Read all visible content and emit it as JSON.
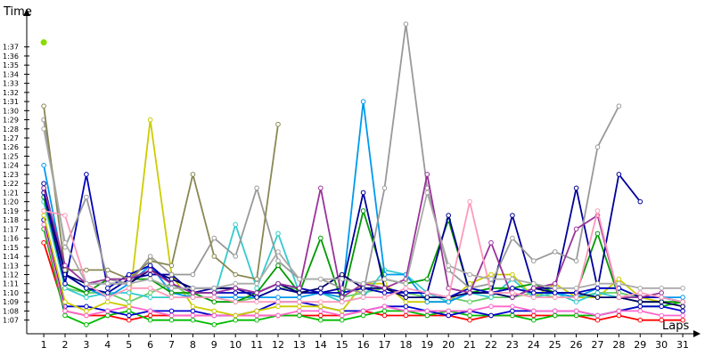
{
  "chart_data": {
    "type": "line",
    "ylabel": "Time",
    "xlabel": "Laps",
    "x": [
      1,
      2,
      3,
      4,
      5,
      6,
      7,
      8,
      9,
      10,
      11,
      12,
      13,
      14,
      15,
      16,
      17,
      18,
      19,
      20,
      21,
      22,
      23,
      24,
      25,
      26,
      27,
      28,
      29,
      30,
      31
    ],
    "x_tick_labels": [
      "1",
      "2",
      "3",
      "4",
      "5",
      "6",
      "7",
      "8",
      "9",
      "10",
      "11",
      "12",
      "13",
      "14",
      "15",
      "16",
      "17",
      "18",
      "19",
      "20",
      "21",
      "22",
      "23",
      "24",
      "25",
      "26",
      "27",
      "28",
      "29",
      "30",
      "31"
    ],
    "y_tick_labels": [
      "1:07",
      "1:08",
      "1:09",
      "1:10",
      "1:11",
      "1:12",
      "1:13",
      "1:14",
      "1:15",
      "1:16",
      "1:17",
      "1:18",
      "1:19",
      "1:20",
      "1:21",
      "1:22",
      "1:23",
      "1:24",
      "1:25",
      "1:26",
      "1:27",
      "1:28",
      "1:29",
      "1:30",
      "1:31",
      "1:32",
      "1:33",
      "1:34",
      "1:35",
      "1:36",
      "1:37"
    ],
    "y_unit": "seconds",
    "ylim": [
      65.5,
      100
    ],
    "xlim": [
      0.2,
      31.5
    ],
    "grid": false,
    "series": [
      {
        "color": "#ff0000",
        "values": [
          75.5,
          68.0,
          67.5,
          67.5,
          67.0,
          67.5,
          67.5,
          67.5,
          67.5,
          67.5,
          67.5,
          67.5,
          67.5,
          67.5,
          67.5,
          68.0,
          67.5,
          67.5,
          67.5,
          67.5,
          67.0,
          67.5,
          67.5,
          67.5,
          67.5,
          67.5,
          67.0,
          67.5,
          67.0,
          67.0,
          67.0
        ]
      },
      {
        "color": "#00bb00",
        "values": [
          77.0,
          67.5,
          66.5,
          67.5,
          68.0,
          67.0,
          67.0,
          67.0,
          66.5,
          67.0,
          67.0,
          67.5,
          67.5,
          67.0,
          67.0,
          67.5,
          68.0,
          68.0,
          67.5,
          68.0,
          67.5,
          67.5,
          67.5,
          67.0,
          67.5,
          67.5,
          67.5,
          68.0,
          68.5,
          68.5,
          69.0
        ]
      },
      {
        "color": "#0000cc",
        "values": [
          78.0,
          68.5,
          68.5,
          68.0,
          67.5,
          68.0,
          68.0,
          68.0,
          67.5,
          67.5,
          68.0,
          69.0,
          69.0,
          68.5,
          68.0,
          68.0,
          68.5,
          68.5,
          68.0,
          67.5,
          68.0,
          67.5,
          68.0,
          68.0,
          68.0,
          68.0,
          67.5,
          68.0,
          68.5,
          68.5,
          68.0
        ]
      },
      {
        "color": "#ff66cc",
        "values": [
          77.5,
          68.0,
          67.5,
          68.0,
          68.5,
          68.0,
          67.5,
          67.5,
          67.5,
          67.5,
          67.5,
          67.5,
          68.0,
          68.0,
          67.5,
          68.0,
          68.5,
          68.0,
          68.0,
          68.0,
          68.0,
          68.5,
          68.5,
          68.0,
          68.0,
          68.0,
          67.5,
          68.0,
          68.0,
          67.5,
          67.5
        ]
      },
      {
        "color": "#cccc00",
        "values": [
          78.5,
          69.0,
          68.0,
          69.0,
          68.5,
          89.0,
          72.0,
          68.5,
          68.0,
          67.5,
          68.0,
          68.5,
          68.5,
          68.5,
          68.0,
          71.0,
          71.0,
          69.0,
          69.0,
          69.0,
          71.0,
          72.0,
          72.0,
          69.5,
          71.0,
          69.5,
          69.5,
          71.5,
          69.5,
          69.0,
          68.5
        ]
      },
      {
        "color": "#66cc66",
        "values": [
          82.0,
          70.5,
          70.0,
          70.0,
          69.0,
          70.0,
          71.0,
          69.5,
          69.5,
          69.0,
          69.5,
          70.5,
          70.5,
          70.0,
          69.5,
          70.0,
          70.5,
          70.0,
          69.5,
          69.5,
          69.0,
          69.5,
          69.5,
          70.0,
          69.5,
          69.5,
          70.0,
          70.0,
          69.5,
          69.5,
          69.0
        ]
      },
      {
        "color": "#33cccc",
        "values": [
          80.0,
          70.5,
          69.5,
          70.0,
          70.0,
          69.5,
          69.5,
          69.5,
          69.5,
          77.5,
          70.5,
          76.5,
          70.0,
          70.0,
          69.0,
          69.5,
          72.5,
          72.0,
          70.0,
          69.0,
          70.0,
          69.5,
          71.5,
          69.5,
          70.0,
          69.0,
          70.0,
          69.5,
          69.5,
          69.5,
          69.0
        ]
      },
      {
        "color": "#0099ee",
        "values": [
          84.0,
          72.0,
          70.5,
          69.5,
          71.0,
          73.0,
          70.0,
          69.5,
          69.5,
          69.5,
          69.5,
          69.5,
          69.5,
          70.0,
          69.5,
          91.0,
          72.0,
          72.0,
          69.0,
          69.0,
          70.0,
          70.0,
          70.5,
          70.0,
          70.0,
          69.5,
          70.5,
          70.5,
          69.5,
          69.5,
          69.5
        ]
      },
      {
        "color": "#009900",
        "values": [
          80.5,
          71.0,
          70.0,
          71.5,
          71.5,
          71.5,
          70.0,
          70.0,
          69.0,
          69.0,
          70.0,
          73.0,
          70.0,
          76.0,
          69.0,
          79.0,
          71.5,
          71.0,
          71.5,
          78.0,
          70.0,
          70.5,
          70.5,
          71.0,
          70.0,
          70.0,
          76.5,
          69.5,
          69.0,
          69.0,
          69.0
        ]
      },
      {
        "color": "#000099",
        "values": [
          82.0,
          72.0,
          70.5,
          70.0,
          71.5,
          72.0,
          72.0,
          70.0,
          70.5,
          70.5,
          69.5,
          70.5,
          70.0,
          70.0,
          70.5,
          81.0,
          70.5,
          70.0,
          70.0,
          78.5,
          70.0,
          70.0,
          78.5,
          70.5,
          70.5,
          81.5,
          70.5,
          83.0,
          80.0,
          null,
          null
        ]
      },
      {
        "color": "#000066",
        "values": [
          81.5,
          72.0,
          71.0,
          71.0,
          71.0,
          72.5,
          71.5,
          70.5,
          70.5,
          70.5,
          70.0,
          71.0,
          70.0,
          70.5,
          72.0,
          70.5,
          70.5,
          69.5,
          69.5,
          69.5,
          70.0,
          70.0,
          69.5,
          70.5,
          70.0,
          70.0,
          69.5,
          69.5,
          69.0,
          69.0,
          68.5
        ]
      },
      {
        "color": "#0000bb",
        "values": [
          81.0,
          71.0,
          83.0,
          70.5,
          72.0,
          73.0,
          71.0,
          70.0,
          70.0,
          70.0,
          70.0,
          71.0,
          70.5,
          70.0,
          70.0,
          70.5,
          70.0,
          70.0,
          70.0,
          69.5,
          70.5,
          70.0,
          70.5,
          70.0,
          70.0,
          70.0,
          70.5,
          70.5,
          69.5,
          69.5,
          69.0
        ]
      },
      {
        "color": "#999999",
        "values": [
          89.0,
          75.0,
          80.5,
          71.5,
          71.0,
          74.0,
          72.0,
          72.0,
          76.0,
          74.0,
          81.5,
          73.5,
          71.5,
          71.5,
          70.5,
          70.0,
          81.5,
          99.5,
          81.5,
          72.5,
          70.5,
          71.0,
          76.0,
          73.5,
          74.5,
          73.5,
          86.0,
          90.5,
          null,
          null,
          null
        ]
      },
      {
        "color": "#888855",
        "values": [
          90.5,
          72.5,
          72.5,
          72.5,
          71.5,
          73.5,
          73.0,
          83.0,
          74.0,
          72.0,
          71.5,
          88.5,
          null,
          null,
          null,
          null,
          null,
          null,
          null,
          null,
          null,
          null,
          null,
          null,
          null,
          null,
          null,
          null,
          null,
          null,
          null
        ]
      },
      {
        "color": "#993399",
        "values": [
          81.5,
          73.0,
          71.0,
          71.5,
          71.5,
          72.5,
          71.0,
          70.0,
          70.0,
          70.5,
          70.0,
          71.0,
          70.5,
          81.5,
          69.5,
          71.0,
          70.5,
          71.5,
          83.0,
          70.5,
          70.0,
          75.5,
          69.5,
          70.5,
          71.0,
          77.0,
          78.5,
          69.5,
          69.5,
          70.0,
          null
        ]
      },
      {
        "color": "#ff99bb",
        "values": [
          79.0,
          78.5,
          71.0,
          69.5,
          70.5,
          70.5,
          69.5,
          69.5,
          69.5,
          69.0,
          69.0,
          69.0,
          69.0,
          69.0,
          69.0,
          69.5,
          69.5,
          70.5,
          70.0,
          69.5,
          80.0,
          70.0,
          70.0,
          69.5,
          69.5,
          69.5,
          79.0,
          69.5,
          70.0,
          69.5,
          69.0
        ]
      },
      {
        "color": "#aaaaaa",
        "values": [
          88.0,
          75.5,
          71.0,
          71.0,
          71.0,
          71.5,
          70.5,
          70.5,
          70.5,
          71.0,
          71.0,
          74.5,
          71.5,
          71.5,
          71.5,
          71.0,
          71.5,
          71.0,
          81.0,
          73.0,
          72.0,
          71.5,
          71.5,
          71.0,
          70.5,
          70.5,
          71.0,
          71.0,
          70.5,
          70.5,
          70.5
        ]
      },
      {
        "color": "#88dd00",
        "values": [
          97.5,
          null,
          null,
          null,
          null,
          null,
          null,
          null,
          null,
          null,
          null,
          null,
          null,
          null,
          null,
          null,
          null,
          null,
          null,
          null,
          null,
          null,
          null,
          null,
          null,
          null,
          null,
          null,
          null,
          null,
          null
        ]
      }
    ]
  }
}
